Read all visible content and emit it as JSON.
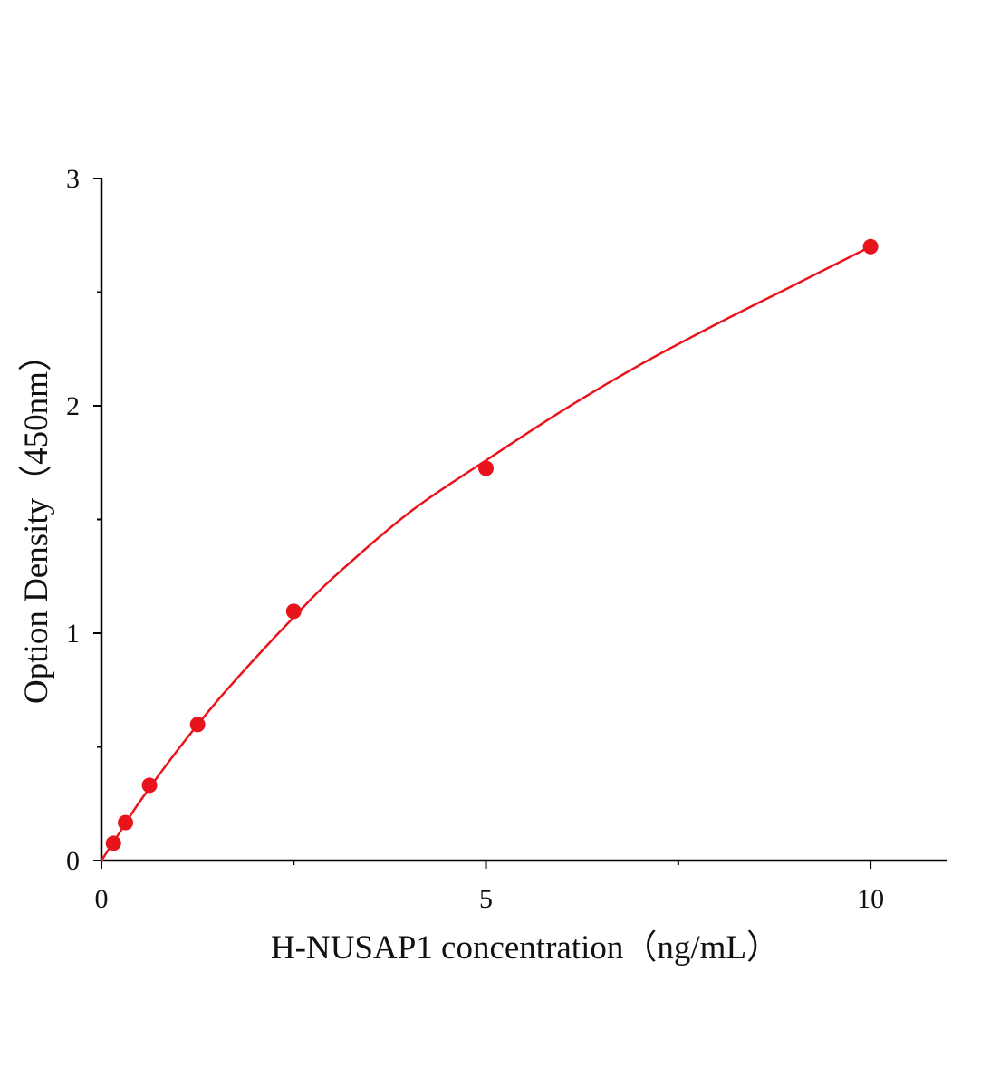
{
  "chart_data": {
    "type": "scatter",
    "x_label": "H-NUSAP1 concentration（ng/mL）",
    "y_label": "Option Density（450nm）",
    "color": "#e8141b",
    "x": [
      0.156,
      0.3125,
      0.625,
      1.25,
      2.5,
      5,
      10
    ],
    "values": [
      0.076,
      0.167,
      0.331,
      0.598,
      1.096,
      1.725,
      2.7
    ],
    "curve": {
      "x": [
        0,
        0.25,
        0.5,
        1,
        1.5,
        2,
        2.5,
        3,
        4,
        5,
        6,
        7,
        8,
        9,
        10
      ],
      "values": [
        0,
        0.13,
        0.26,
        0.49,
        0.7,
        0.89,
        1.07,
        1.24,
        1.53,
        1.76,
        1.98,
        2.18,
        2.36,
        2.53,
        2.7
      ]
    },
    "xlim": [
      0,
      11
    ],
    "ylim": [
      0,
      3
    ],
    "xticks": [
      0,
      5,
      10
    ],
    "yticks": [
      0,
      1,
      2,
      3
    ],
    "xminorticks": [
      2.5,
      7.5
    ],
    "yminorticks": [
      0.5,
      1.5,
      2.5
    ]
  }
}
